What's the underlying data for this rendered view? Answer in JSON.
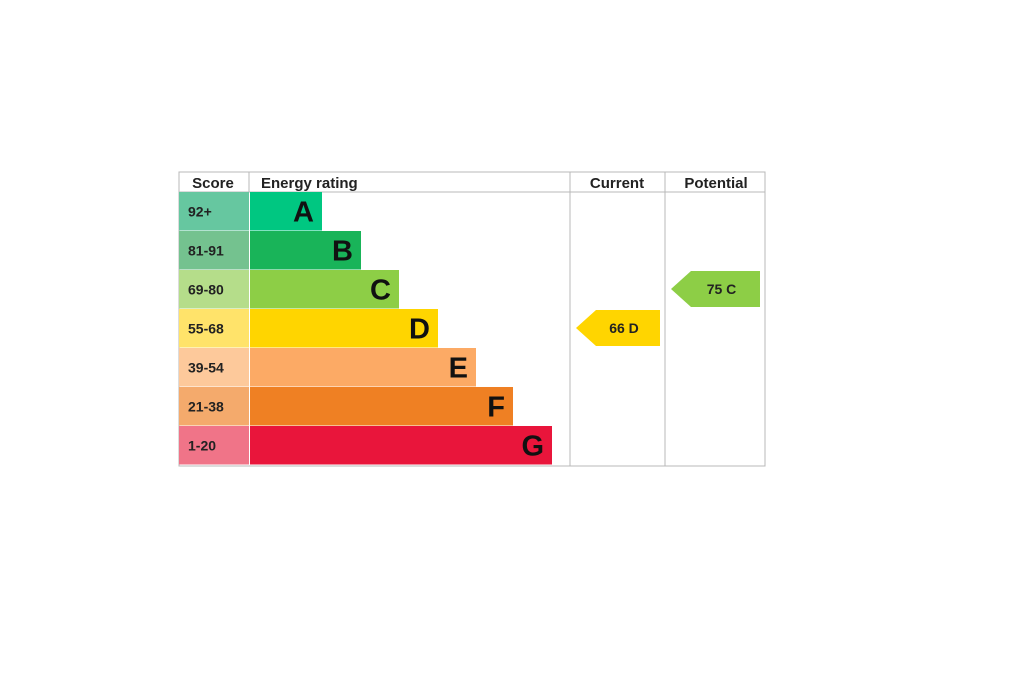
{
  "chart_data": {
    "type": "bar",
    "headers": {
      "score": "Score",
      "rating": "Energy rating",
      "current": "Current",
      "potential": "Potential"
    },
    "bands": [
      {
        "score": "92+",
        "letter": "A",
        "bar_color": "#00C781",
        "score_color": "#66C7A0"
      },
      {
        "score": "81-91",
        "letter": "B",
        "bar_color": "#19B459",
        "score_color": "#74C28F"
      },
      {
        "score": "69-80",
        "letter": "C",
        "bar_color": "#8DCE46",
        "score_color": "#B5DD8A"
      },
      {
        "score": "55-68",
        "letter": "D",
        "bar_color": "#FFD500",
        "score_color": "#FFE36A"
      },
      {
        "score": "39-54",
        "letter": "E",
        "bar_color": "#FCAA65",
        "score_color": "#FDC99B"
      },
      {
        "score": "21-38",
        "letter": "F",
        "bar_color": "#EF8023",
        "score_color": "#F4AA6C"
      },
      {
        "score": "1-20",
        "letter": "G",
        "bar_color": "#E9153B",
        "score_color": "#F07488"
      }
    ],
    "current": {
      "value": 66,
      "letter": "D",
      "color": "#FFD500"
    },
    "potential": {
      "value": 75,
      "letter": "C",
      "color": "#8DCE46"
    }
  }
}
